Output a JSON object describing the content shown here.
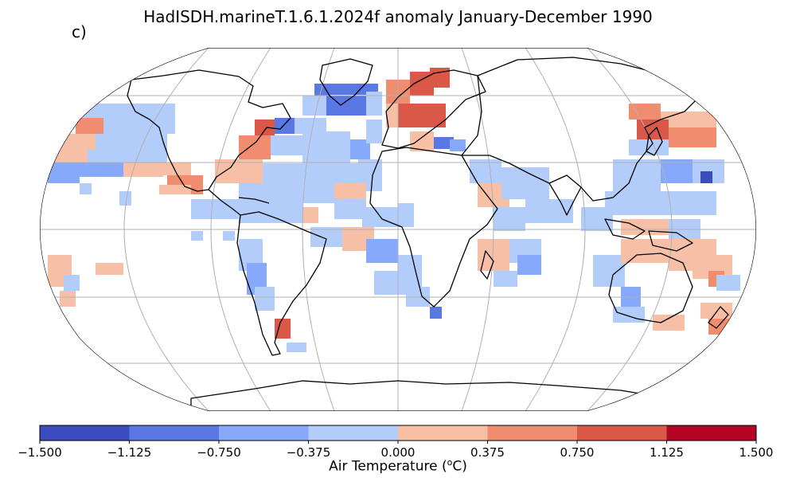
{
  "title": "HadISDH.marineT.1.6.1.2024f anomaly January-December 1990",
  "panel_label": "c)",
  "colorbar": {
    "label_prefix": "Air Temperature (",
    "label_sup": "o",
    "label_suffix": "C)",
    "ticks": [
      "−1.500",
      "−1.125",
      "−0.750",
      "−0.375",
      "0.000",
      "0.375",
      "0.750",
      "1.125",
      "1.500"
    ],
    "colors": [
      "#3b4cc0",
      "#5a78e4",
      "#86a9fc",
      "#b3cdfb",
      "#f6bfa6",
      "#f18d6f",
      "#d95847",
      "#b40426"
    ]
  },
  "map": {
    "projection": "Robinson",
    "graticule": true,
    "coastlines": true,
    "gridded_anomalies": true
  }
}
